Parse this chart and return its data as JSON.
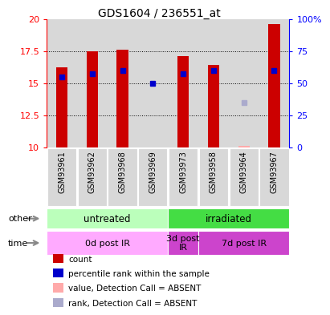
{
  "title": "GDS1604 / 236551_at",
  "samples": [
    "GSM93961",
    "GSM93962",
    "GSM93968",
    "GSM93969",
    "GSM93973",
    "GSM93958",
    "GSM93964",
    "GSM93967"
  ],
  "count_values": [
    16.2,
    17.5,
    17.6,
    null,
    17.1,
    16.4,
    null,
    19.6
  ],
  "count_absent": [
    null,
    null,
    null,
    null,
    null,
    null,
    10.1,
    null
  ],
  "rank_values": [
    55,
    57,
    60,
    50,
    57,
    60,
    null,
    60
  ],
  "rank_absent": [
    null,
    null,
    null,
    null,
    null,
    null,
    35,
    null
  ],
  "ylim_left": [
    10,
    20
  ],
  "ylim_right": [
    0,
    100
  ],
  "yticks_left": [
    10,
    12.5,
    15,
    17.5,
    20
  ],
  "yticks_right": [
    0,
    25,
    50,
    75,
    100
  ],
  "ytick_labels_left": [
    "10",
    "12.5",
    "15",
    "17.5",
    "20"
  ],
  "ytick_labels_right": [
    "0",
    "25",
    "50",
    "75",
    "100%"
  ],
  "bar_color": "#cc0000",
  "bar_absent_color": "#ffaaaa",
  "rank_color": "#0000cc",
  "rank_absent_color": "#aaaacc",
  "bar_width": 0.38,
  "grid_color": "#000000",
  "col_bg": "#d8d8d8",
  "groups": [
    {
      "label": "untreated",
      "start": 0,
      "end": 3,
      "color": "#bbffbb"
    },
    {
      "label": "irradiated",
      "start": 4,
      "end": 7,
      "color": "#44dd44"
    }
  ],
  "times": [
    {
      "label": "0d post IR",
      "start": 0,
      "end": 3,
      "color": "#ffaaff"
    },
    {
      "label": "3d post\nIR",
      "start": 4,
      "end": 4,
      "color": "#cc44cc"
    },
    {
      "label": "7d post IR",
      "start": 5,
      "end": 7,
      "color": "#cc44cc"
    }
  ],
  "legend_items": [
    {
      "label": "count",
      "color": "#cc0000"
    },
    {
      "label": "percentile rank within the sample",
      "color": "#0000cc"
    },
    {
      "label": "value, Detection Call = ABSENT",
      "color": "#ffaaaa"
    },
    {
      "label": "rank, Detection Call = ABSENT",
      "color": "#aaaacc"
    }
  ],
  "other_label": "other",
  "time_label": "time",
  "arrow_color": "#888888"
}
